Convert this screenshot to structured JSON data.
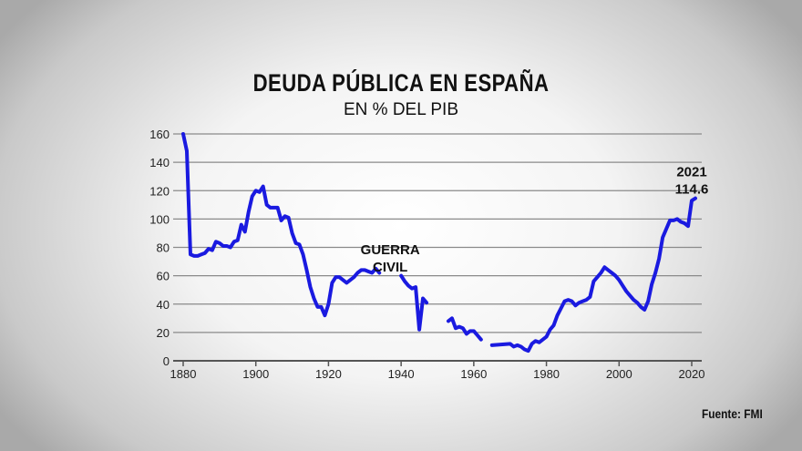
{
  "chart_data": {
    "type": "line",
    "title": "DEUDA PÚBLICA EN ESPAÑA",
    "subtitle": "EN % DEL PIB",
    "source": "Fuente: FMI",
    "xlim": [
      1880,
      2020
    ],
    "ylim": [
      0,
      160
    ],
    "x_ticks": [
      1880,
      1900,
      1920,
      1940,
      1960,
      1980,
      2000,
      2020
    ],
    "y_ticks": [
      0,
      20,
      40,
      60,
      80,
      100,
      120,
      140,
      160
    ],
    "grid": "horizontal",
    "line_color": "#1a1ae0",
    "annotations": [
      {
        "text": [
          "GUERRA",
          "CIVIL"
        ],
        "x": 1937,
        "y": 70
      },
      {
        "text": [
          "2021",
          "114.6"
        ],
        "x": 2020,
        "y": 125
      }
    ],
    "segments": [
      [
        [
          1880,
          160
        ],
        [
          1881,
          148
        ],
        [
          1882,
          75
        ],
        [
          1883,
          74
        ],
        [
          1884,
          74
        ],
        [
          1885,
          75
        ],
        [
          1886,
          76
        ],
        [
          1887,
          79
        ],
        [
          1888,
          78
        ],
        [
          1889,
          84
        ],
        [
          1890,
          83
        ],
        [
          1891,
          81
        ],
        [
          1892,
          81
        ],
        [
          1893,
          80
        ],
        [
          1894,
          84
        ],
        [
          1895,
          85
        ],
        [
          1896,
          96
        ],
        [
          1897,
          91
        ],
        [
          1898,
          105
        ],
        [
          1899,
          116
        ],
        [
          1900,
          120
        ],
        [
          1901,
          119
        ],
        [
          1902,
          123
        ],
        [
          1903,
          110
        ],
        [
          1904,
          108
        ],
        [
          1905,
          108
        ],
        [
          1906,
          108
        ],
        [
          1907,
          99
        ],
        [
          1908,
          102
        ],
        [
          1909,
          101
        ],
        [
          1910,
          90
        ],
        [
          1911,
          83
        ],
        [
          1912,
          82
        ],
        [
          1913,
          75
        ],
        [
          1914,
          64
        ],
        [
          1915,
          52
        ],
        [
          1916,
          44
        ],
        [
          1917,
          38
        ],
        [
          1918,
          38
        ],
        [
          1919,
          32
        ],
        [
          1920,
          40
        ],
        [
          1921,
          55
        ],
        [
          1922,
          59
        ],
        [
          1923,
          59
        ],
        [
          1924,
          57
        ],
        [
          1925,
          55
        ],
        [
          1926,
          57
        ],
        [
          1927,
          59
        ],
        [
          1928,
          62
        ],
        [
          1929,
          64
        ],
        [
          1930,
          64
        ],
        [
          1931,
          63
        ],
        [
          1932,
          62
        ],
        [
          1933,
          65
        ],
        [
          1934,
          62
        ]
      ],
      [
        [
          1940,
          60
        ],
        [
          1941,
          56
        ],
        [
          1942,
          53
        ],
        [
          1943,
          51
        ],
        [
          1944,
          52
        ],
        [
          1945,
          22
        ],
        [
          1946,
          44
        ],
        [
          1947,
          41
        ]
      ],
      [
        [
          1953,
          28
        ],
        [
          1954,
          30
        ],
        [
          1955,
          23
        ],
        [
          1956,
          24
        ],
        [
          1957,
          23
        ],
        [
          1958,
          19
        ],
        [
          1959,
          21
        ],
        [
          1960,
          21
        ],
        [
          1961,
          18
        ],
        [
          1962,
          15
        ]
      ],
      [
        [
          1965,
          11
        ],
        [
          1970,
          12
        ],
        [
          1971,
          10
        ],
        [
          1972,
          11
        ],
        [
          1973,
          10
        ],
        [
          1974,
          8
        ],
        [
          1975,
          7
        ],
        [
          1976,
          12
        ],
        [
          1977,
          14
        ],
        [
          1978,
          13
        ],
        [
          1979,
          15
        ],
        [
          1980,
          17
        ],
        [
          1981,
          22
        ],
        [
          1982,
          25
        ],
        [
          1983,
          32
        ],
        [
          1984,
          37
        ],
        [
          1985,
          42
        ],
        [
          1986,
          43
        ],
        [
          1987,
          42
        ],
        [
          1988,
          39
        ],
        [
          1989,
          41
        ],
        [
          1990,
          42
        ],
        [
          1991,
          43
        ],
        [
          1992,
          45
        ],
        [
          1993,
          56
        ],
        [
          1994,
          59
        ],
        [
          1995,
          62
        ],
        [
          1996,
          66
        ],
        [
          1997,
          64
        ],
        [
          1998,
          62
        ],
        [
          1999,
          60
        ],
        [
          2000,
          57
        ],
        [
          2001,
          53
        ],
        [
          2002,
          49
        ],
        [
          2003,
          46
        ],
        [
          2004,
          43
        ],
        [
          2005,
          41
        ],
        [
          2006,
          38
        ],
        [
          2007,
          36
        ],
        [
          2008,
          42
        ],
        [
          2009,
          54
        ],
        [
          2010,
          62
        ],
        [
          2011,
          72
        ],
        [
          2012,
          87
        ],
        [
          2013,
          93
        ],
        [
          2014,
          99
        ],
        [
          2015,
          99
        ],
        [
          2016,
          100
        ],
        [
          2017,
          98
        ],
        [
          2018,
          97
        ],
        [
          2019,
          95
        ],
        [
          2020,
          113
        ],
        [
          2021,
          114.6
        ]
      ]
    ]
  }
}
